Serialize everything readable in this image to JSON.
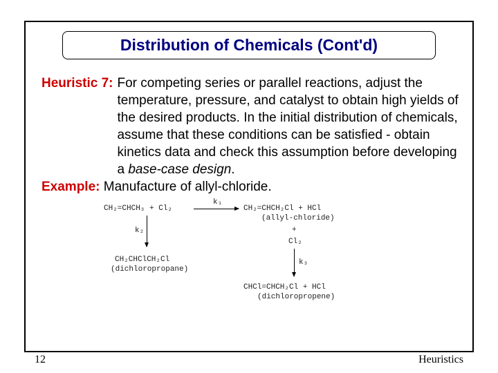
{
  "title": "Distribution of Chemicals (Cont'd)",
  "heuristic": {
    "label": "Heuristic 7:",
    "body_html": "For competing series or parallel reactions, adjust the temperature, pressure, and catalyst to obtain high yields of the desired products. In the initial distribution of chemicals, assume that these conditions can be satisfied - obtain kinetics data and check this assumption before developing a <span class=\"italic\">base-case design</span>."
  },
  "example": {
    "label": "Example:",
    "body": "Manufacture of allyl-chloride."
  },
  "chem_diagram": {
    "reac1_left": "CH₂=CHCH₃ + Cl₂",
    "k1": "k₁",
    "prod1": "CH₂=CHCH₂Cl + HCl",
    "prod1_name": "(allyl-chloride)",
    "plus1": "+",
    "cl2": "Cl₂",
    "k2": "k₂",
    "prod2": "CH₂CHClCH₂Cl",
    "prod2_name": "(dichloropropane)",
    "k3": "k₃",
    "prod3": "CHCl=CHCH₂Cl + HCl",
    "prod3_name": "(dichloropropene)"
  },
  "page_number": "12",
  "footer": "Heuristics",
  "colors": {
    "title_color": "#000080",
    "accent_red": "#cc0000",
    "border": "#000000"
  }
}
